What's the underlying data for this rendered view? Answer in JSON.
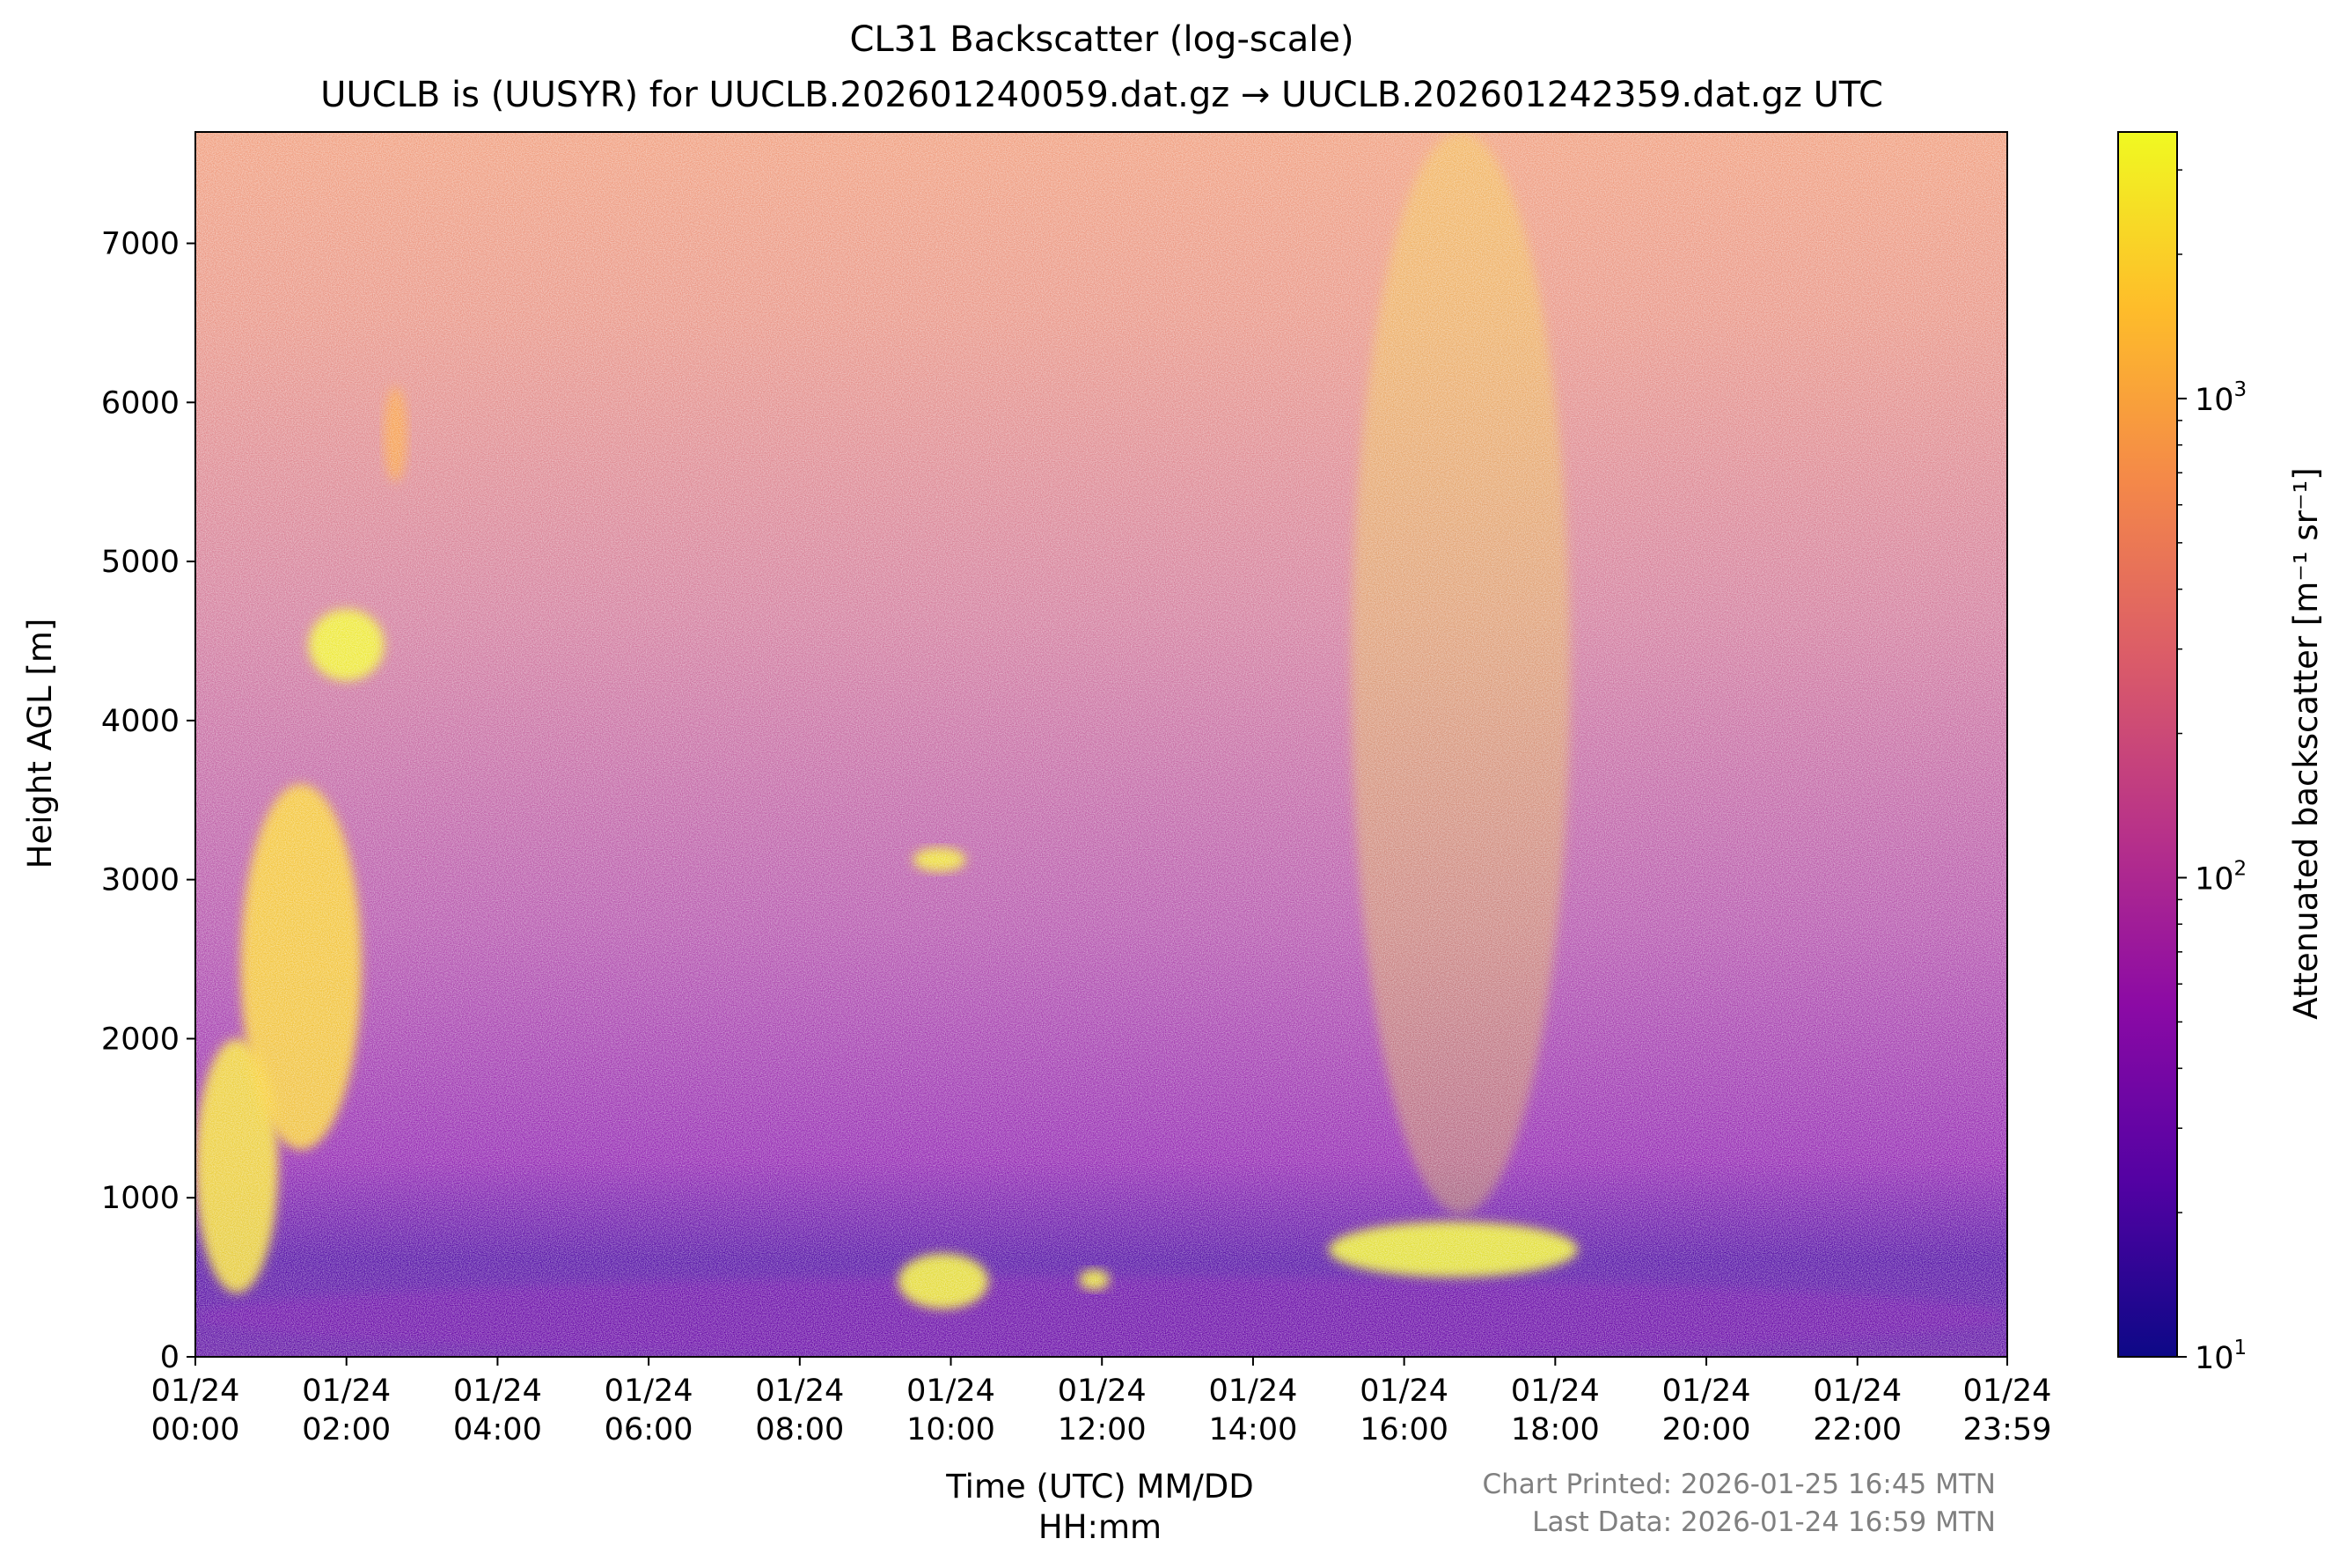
{
  "chart_data": {
    "type": "heatmap",
    "title": "CL31 Backscatter (log-scale)",
    "subtitle": "UUCLB is (UUSYR) for UUCLB.202601240059.dat.gz → UUCLB.202601242359.dat.gz UTC",
    "xlabel_line1": "Time (UTC) MM/DD",
    "xlabel_line2": "HH:mm",
    "ylabel": "Height AGL [m]",
    "xlim_hours": [
      0,
      23.983
    ],
    "ylim": [
      0,
      7700
    ],
    "x_ticks": [
      {
        "hours": 0,
        "date": "01/24",
        "time": "00:00"
      },
      {
        "hours": 2,
        "date": "01/24",
        "time": "02:00"
      },
      {
        "hours": 4,
        "date": "01/24",
        "time": "04:00"
      },
      {
        "hours": 6,
        "date": "01/24",
        "time": "06:00"
      },
      {
        "hours": 8,
        "date": "01/24",
        "time": "08:00"
      },
      {
        "hours": 10,
        "date": "01/24",
        "time": "10:00"
      },
      {
        "hours": 12,
        "date": "01/24",
        "time": "12:00"
      },
      {
        "hours": 14,
        "date": "01/24",
        "time": "14:00"
      },
      {
        "hours": 16,
        "date": "01/24",
        "time": "16:00"
      },
      {
        "hours": 18,
        "date": "01/24",
        "time": "18:00"
      },
      {
        "hours": 20,
        "date": "01/24",
        "time": "20:00"
      },
      {
        "hours": 22,
        "date": "01/24",
        "time": "22:00"
      },
      {
        "hours": 23.983,
        "date": "01/24",
        "time": "23:59"
      }
    ],
    "y_ticks": [
      {
        "value": 0,
        "label": "0"
      },
      {
        "value": 1000,
        "label": "1000"
      },
      {
        "value": 2000,
        "label": "2000"
      },
      {
        "value": 3000,
        "label": "3000"
      },
      {
        "value": 4000,
        "label": "4000"
      },
      {
        "value": 5000,
        "label": "5000"
      },
      {
        "value": 6000,
        "label": "6000"
      },
      {
        "value": 7000,
        "label": "7000"
      }
    ],
    "colorbar": {
      "label": "Attenuated backscatter [m⁻¹ sr⁻¹]",
      "scale": "log",
      "range": [
        10,
        3600
      ],
      "colormap": "plasma",
      "colors": [
        "#0d0887",
        "#5302a3",
        "#8b0aa5",
        "#b83289",
        "#db5c68",
        "#f48849",
        "#febd2a",
        "#f0f921"
      ],
      "ticks": [
        {
          "value": 10,
          "base": "10",
          "exp": "1"
        },
        {
          "value": 100,
          "base": "10",
          "exp": "2"
        },
        {
          "value": 1000,
          "base": "10",
          "exp": "3"
        }
      ]
    },
    "features": [
      {
        "name": "boundary-layer",
        "hours_start": 0,
        "hours_end": 23.983,
        "height_top_m": 500,
        "backscatter": 30
      },
      {
        "name": "plume-early",
        "hours_start": 0,
        "hours_end": 1.1,
        "height_bottom_m": 400,
        "height_top_m": 2000,
        "backscatter": 2500
      },
      {
        "name": "plume-tower",
        "hours_start": 0.6,
        "hours_end": 2.2,
        "height_bottom_m": 1300,
        "height_top_m": 3600,
        "backscatter": 2000
      },
      {
        "name": "cloud-4500m",
        "hours_start": 1.5,
        "hours_end": 2.5,
        "height_bottom_m": 4250,
        "height_top_m": 4700,
        "backscatter": 3400
      },
      {
        "name": "cloud-5800m",
        "hours_start": 2.5,
        "hours_end": 2.8,
        "height_bottom_m": 5500,
        "height_top_m": 6100,
        "backscatter": 900
      },
      {
        "name": "cloud-3100m",
        "hours_start": 9.5,
        "hours_end": 10.2,
        "height_bottom_m": 3050,
        "height_top_m": 3200,
        "backscatter": 3000
      },
      {
        "name": "low-cloud-10h",
        "hours_start": 9.3,
        "hours_end": 10.5,
        "height_bottom_m": 300,
        "height_top_m": 650,
        "backscatter": 3200
      },
      {
        "name": "low-cloud-12h",
        "hours_start": 11.7,
        "hours_end": 12.1,
        "height_bottom_m": 420,
        "height_top_m": 550,
        "backscatter": 3200
      },
      {
        "name": "low-cloud-16h",
        "hours_start": 15.0,
        "hours_end": 18.3,
        "height_bottom_m": 500,
        "height_top_m": 850,
        "backscatter": 3400
      },
      {
        "name": "precip-column",
        "hours_start": 15.3,
        "hours_end": 18.2,
        "height_bottom_m": 900,
        "height_top_m": 7700,
        "backscatter": 2500
      }
    ]
  },
  "footer": {
    "printed": "Chart Printed: 2026-01-25 16:45 MTN",
    "last_data": "Last Data: 2026-01-24 16:59 MTN"
  }
}
